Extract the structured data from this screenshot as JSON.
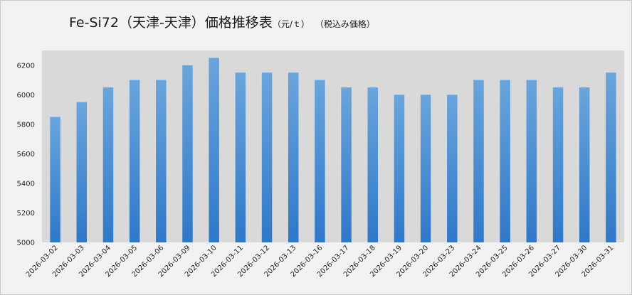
{
  "chart_data": {
    "type": "bar",
    "title": "Fe-Si72（天津-天津）価格推移表",
    "unit": "（元/ｔ）",
    "note": "（税込み価格）",
    "categories": [
      "2026-03-02",
      "2026-03-03",
      "2026-03-04",
      "2026-03-05",
      "2026-03-06",
      "2026-03-09",
      "2026-03-10",
      "2026-03-11",
      "2026-03-12",
      "2026-03-13",
      "2026-03-16",
      "2026-03-17",
      "2026-03-18",
      "2026-03-19",
      "2026-03-20",
      "2026-03-23",
      "2026-03-24",
      "2026-03-25",
      "2026-03-26",
      "2026-03-27",
      "2026-03-30",
      "2026-03-31"
    ],
    "values": [
      5850,
      5950,
      6050,
      6100,
      6100,
      6200,
      6250,
      6150,
      6150,
      6150,
      6100,
      6050,
      6050,
      6000,
      6000,
      6000,
      6100,
      6100,
      6100,
      6050,
      6050,
      6150
    ],
    "ylim": [
      5000,
      6300
    ],
    "yticks": [
      5000,
      5200,
      5400,
      5600,
      5800,
      6000,
      6200
    ],
    "xlabel": "",
    "ylabel": "",
    "grid": false,
    "legend": false,
    "colors": {
      "bar_top": "#6aa5dc",
      "bar_bottom": "#2f78c8",
      "plot_bg": "#d9d9d9",
      "chart_bg": "#f2f2f2"
    }
  }
}
